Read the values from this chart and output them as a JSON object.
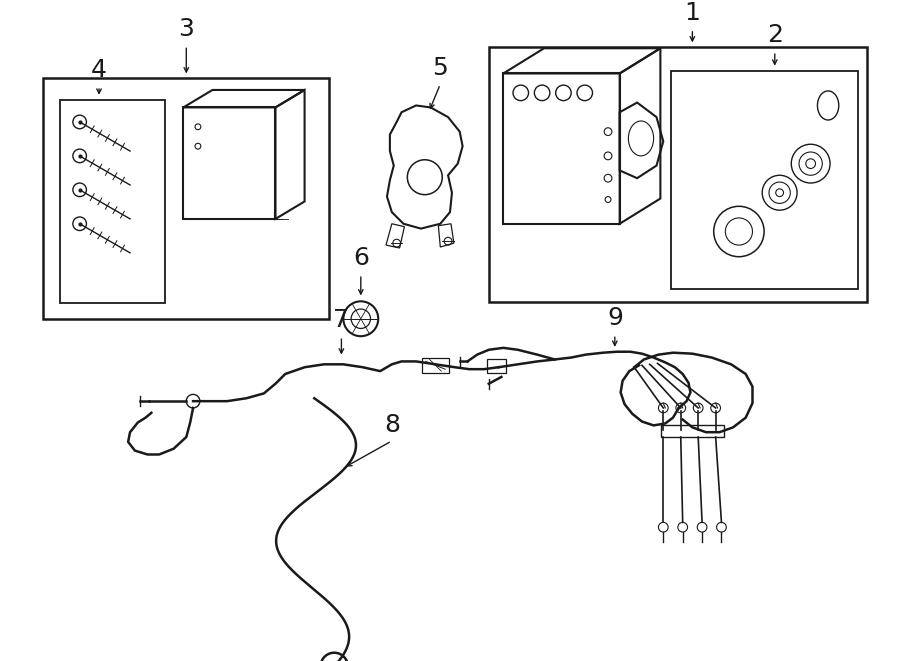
{
  "bg_color": "#ffffff",
  "line_color": "#1a1a1a",
  "lw": 1.5
}
